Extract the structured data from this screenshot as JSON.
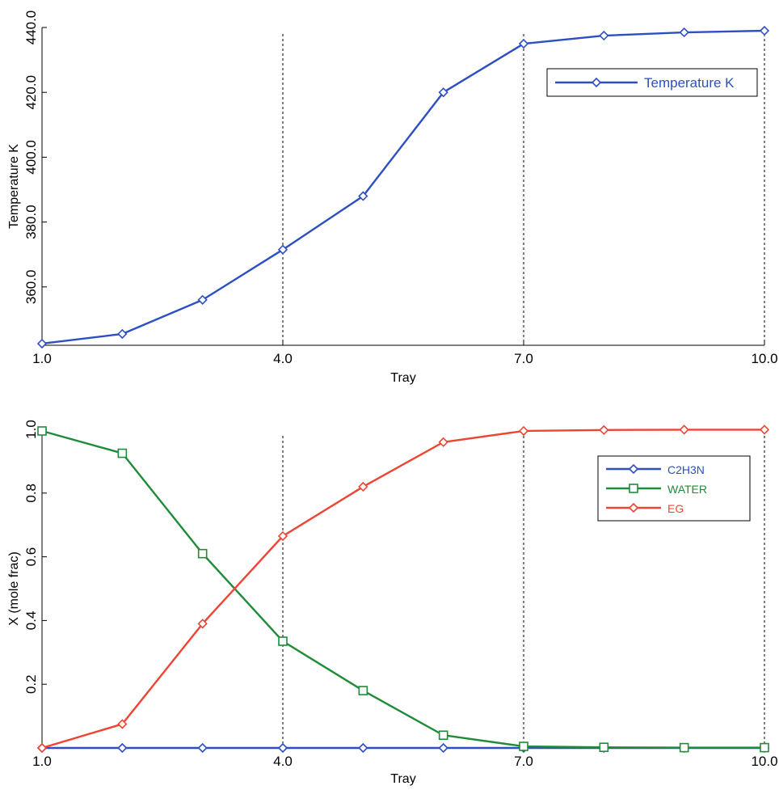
{
  "colors": {
    "blue": "#2d4fc0",
    "green": "#1f8c3a",
    "red": "#ee4433",
    "axis": "#000000",
    "guide": "#000000"
  },
  "chart_data": [
    {
      "type": "line",
      "xlabel": "Tray",
      "ylabel": "Temperature K",
      "xlim": [
        1,
        10
      ],
      "ylim": [
        342,
        440
      ],
      "x_ticks": [
        1,
        4,
        7,
        10
      ],
      "x_tick_labels": [
        "1.0",
        "4.0",
        "7.0",
        "10.0"
      ],
      "y_ticks": [
        360,
        380,
        400,
        420,
        440
      ],
      "y_tick_labels": [
        "360.0",
        "380.0",
        "400.0",
        "420.0",
        "440.0"
      ],
      "vertical_guides": [
        4,
        7,
        10
      ],
      "legend_position": "top-right",
      "grid": false,
      "x": [
        1,
        2,
        3,
        4,
        5,
        6,
        7,
        8,
        9,
        10
      ],
      "series": [
        {
          "name": "Temperature K",
          "color": "#2d4fc0",
          "marker": "diamond",
          "values": [
            342.5,
            345.5,
            356,
            371.5,
            388,
            420,
            435,
            437.5,
            438.5,
            439
          ]
        }
      ]
    },
    {
      "type": "line",
      "xlabel": "Tray",
      "ylabel": "X  (mole frac)",
      "xlim": [
        1,
        10
      ],
      "ylim": [
        0,
        1
      ],
      "x_ticks": [
        1,
        4,
        7,
        10
      ],
      "x_tick_labels": [
        "1.0",
        "4.0",
        "7.0",
        "10.0"
      ],
      "y_ticks": [
        0.2,
        0.4,
        0.6,
        0.8,
        1.0
      ],
      "y_tick_labels": [
        "0.2",
        "0.4",
        "0.6",
        "0.8",
        "1.0"
      ],
      "vertical_guides": [
        4,
        7,
        10
      ],
      "legend_position": "top-right",
      "grid": false,
      "x": [
        1,
        2,
        3,
        4,
        5,
        6,
        7,
        8,
        9,
        10
      ],
      "series": [
        {
          "name": "C2H3N",
          "color": "#2d4fc0",
          "marker": "diamond",
          "values": [
            0,
            0,
            0,
            0,
            0,
            0,
            0,
            0,
            0,
            0
          ]
        },
        {
          "name": "WATER",
          "color": "#1f8c3a",
          "marker": "square",
          "values": [
            0.995,
            0.925,
            0.61,
            0.335,
            0.18,
            0.04,
            0.005,
            0.002,
            0.001,
            0.001
          ]
        },
        {
          "name": "EG",
          "color": "#ee4433",
          "marker": "diamond",
          "values": [
            0.0,
            0.075,
            0.39,
            0.665,
            0.82,
            0.96,
            0.995,
            0.998,
            0.999,
            0.999
          ]
        }
      ]
    }
  ]
}
